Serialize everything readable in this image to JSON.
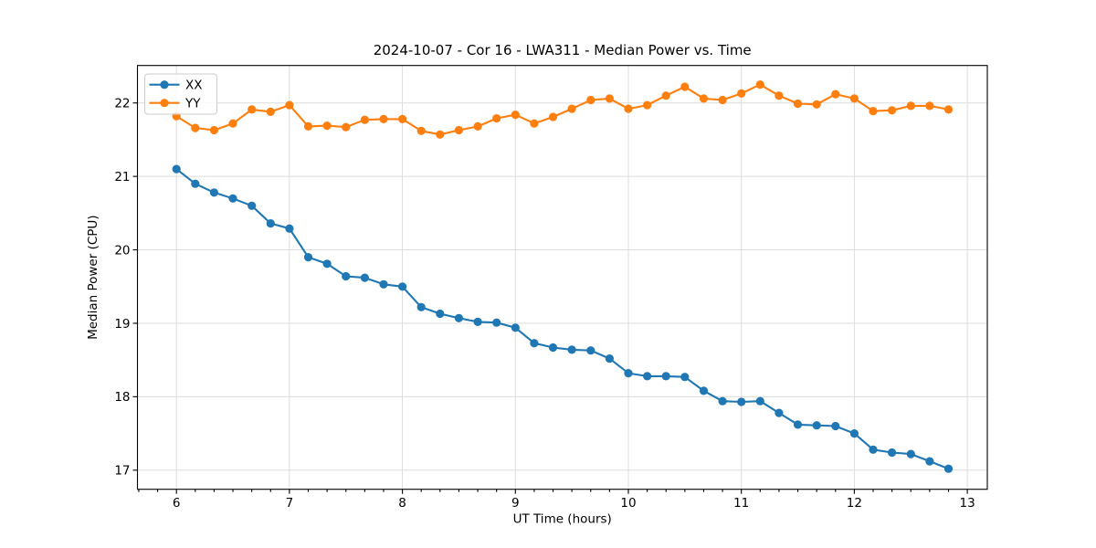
{
  "chart_data": {
    "type": "line",
    "title": "2024-10-07 - Cor 16 - LWA311 - Median Power vs. Time",
    "xlabel": "UT Time (hours)",
    "ylabel": "Median Power (CPU)",
    "xlim": [
      5.655,
      13.177
    ],
    "ylim": [
      16.74,
      22.51
    ],
    "xticks": [
      6,
      7,
      8,
      9,
      10,
      11,
      12,
      13
    ],
    "xtick_labels": [
      "6",
      "7",
      "8",
      "9",
      "10",
      "11",
      "12",
      "13"
    ],
    "yticks": [
      17,
      18,
      19,
      20,
      21,
      22
    ],
    "ytick_labels": [
      "17",
      "18",
      "19",
      "20",
      "21",
      "22"
    ],
    "x_minor_step": 0.166667,
    "grid": true,
    "grid_color": "#dcdcdc",
    "axis_color": "#000000",
    "legend_position": "upper-left",
    "x": [
      6.0,
      6.1667,
      6.3333,
      6.5,
      6.6667,
      6.8333,
      7.0,
      7.1667,
      7.3333,
      7.5,
      7.6667,
      7.8333,
      8.0,
      8.1667,
      8.3333,
      8.5,
      8.6667,
      8.8333,
      9.0,
      9.1667,
      9.3333,
      9.5,
      9.6667,
      9.8333,
      10.0,
      10.1667,
      10.3333,
      10.5,
      10.6667,
      10.8333,
      11.0,
      11.1667,
      11.3333,
      11.5,
      11.6667,
      11.8333,
      12.0,
      12.1667,
      12.3333,
      12.5,
      12.6667,
      12.8333
    ],
    "series": [
      {
        "name": "XX",
        "color": "#1f77b4",
        "values": [
          21.1,
          20.9,
          20.78,
          20.7,
          20.6,
          20.36,
          20.29,
          19.9,
          19.81,
          19.64,
          19.62,
          19.53,
          19.5,
          19.22,
          19.13,
          19.07,
          19.02,
          19.01,
          18.94,
          18.73,
          18.67,
          18.64,
          18.63,
          18.52,
          18.32,
          18.28,
          18.28,
          18.27,
          18.08,
          17.94,
          17.93,
          17.94,
          17.78,
          17.62,
          17.61,
          17.6,
          17.5,
          17.28,
          17.24,
          17.22,
          17.12,
          17.02
        ]
      },
      {
        "name": "YY",
        "color": "#ff7f0e",
        "values": [
          21.82,
          21.66,
          21.63,
          21.72,
          21.91,
          21.88,
          21.97,
          21.68,
          21.69,
          21.67,
          21.77,
          21.78,
          21.78,
          21.62,
          21.57,
          21.63,
          21.68,
          21.79,
          21.84,
          21.72,
          21.81,
          21.92,
          22.04,
          22.06,
          21.92,
          21.97,
          22.1,
          22.22,
          22.06,
          22.04,
          22.13,
          22.25,
          22.1,
          21.99,
          21.98,
          22.12,
          22.06,
          21.89,
          21.9,
          21.96,
          21.96,
          21.91
        ]
      }
    ]
  }
}
